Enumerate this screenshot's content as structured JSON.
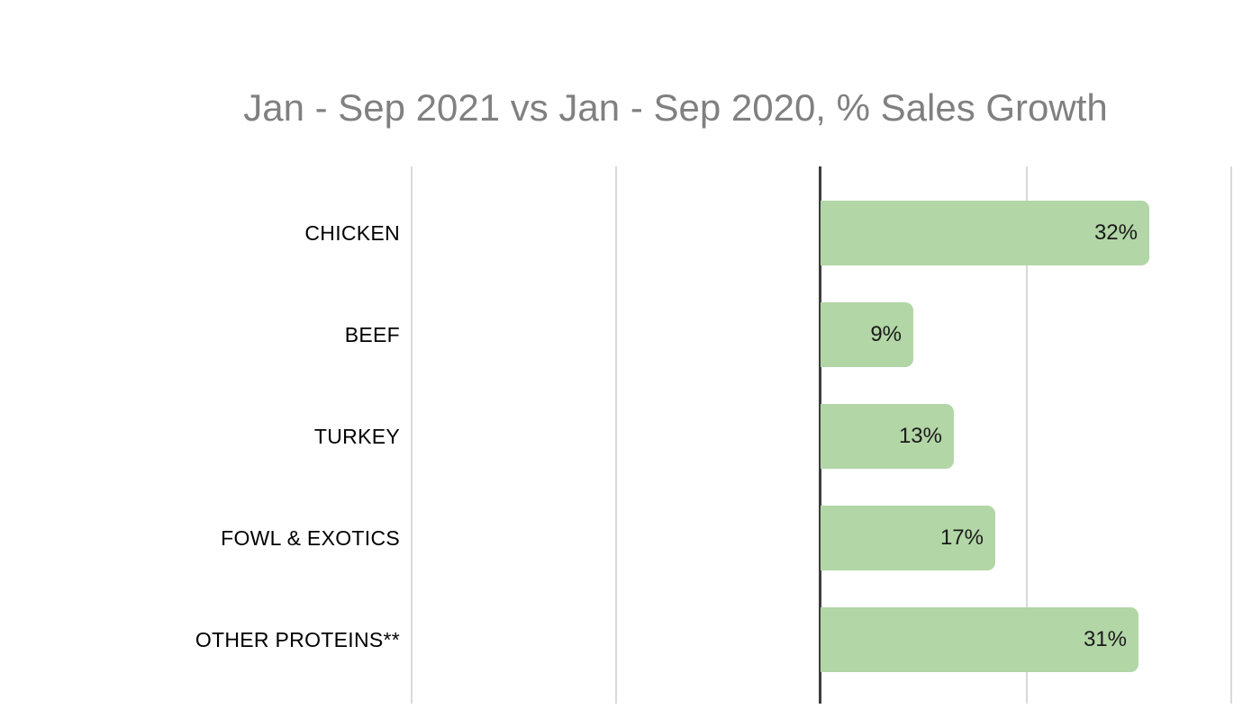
{
  "chart_data": {
    "type": "bar",
    "orientation": "horizontal",
    "title": "Jan - Sep 2021 vs Jan - Sep 2020, % Sales Growth",
    "categories": [
      "CHICKEN",
      "BEEF",
      "TURKEY",
      "FOWL & EXOTICS",
      "OTHER PROTEINS**"
    ],
    "values": [
      32,
      9,
      13,
      17,
      31
    ],
    "value_labels": [
      "32%",
      "9%",
      "13%",
      "17%",
      "31%"
    ],
    "unit": "%",
    "xlim": [
      -40,
      40
    ],
    "gridlines_pct": [
      -40,
      -20,
      0,
      20,
      40
    ],
    "grid": true,
    "legend": "none",
    "axis_tick_labels_visible": false,
    "colors": {
      "bar": "#b2d6a6",
      "title": "#808080",
      "category_label": "#000000",
      "value_label": "#1a1a1a",
      "gridline": "#d9d9d9",
      "zero_line": "#3d3d3d",
      "background": "#ffffff"
    }
  }
}
